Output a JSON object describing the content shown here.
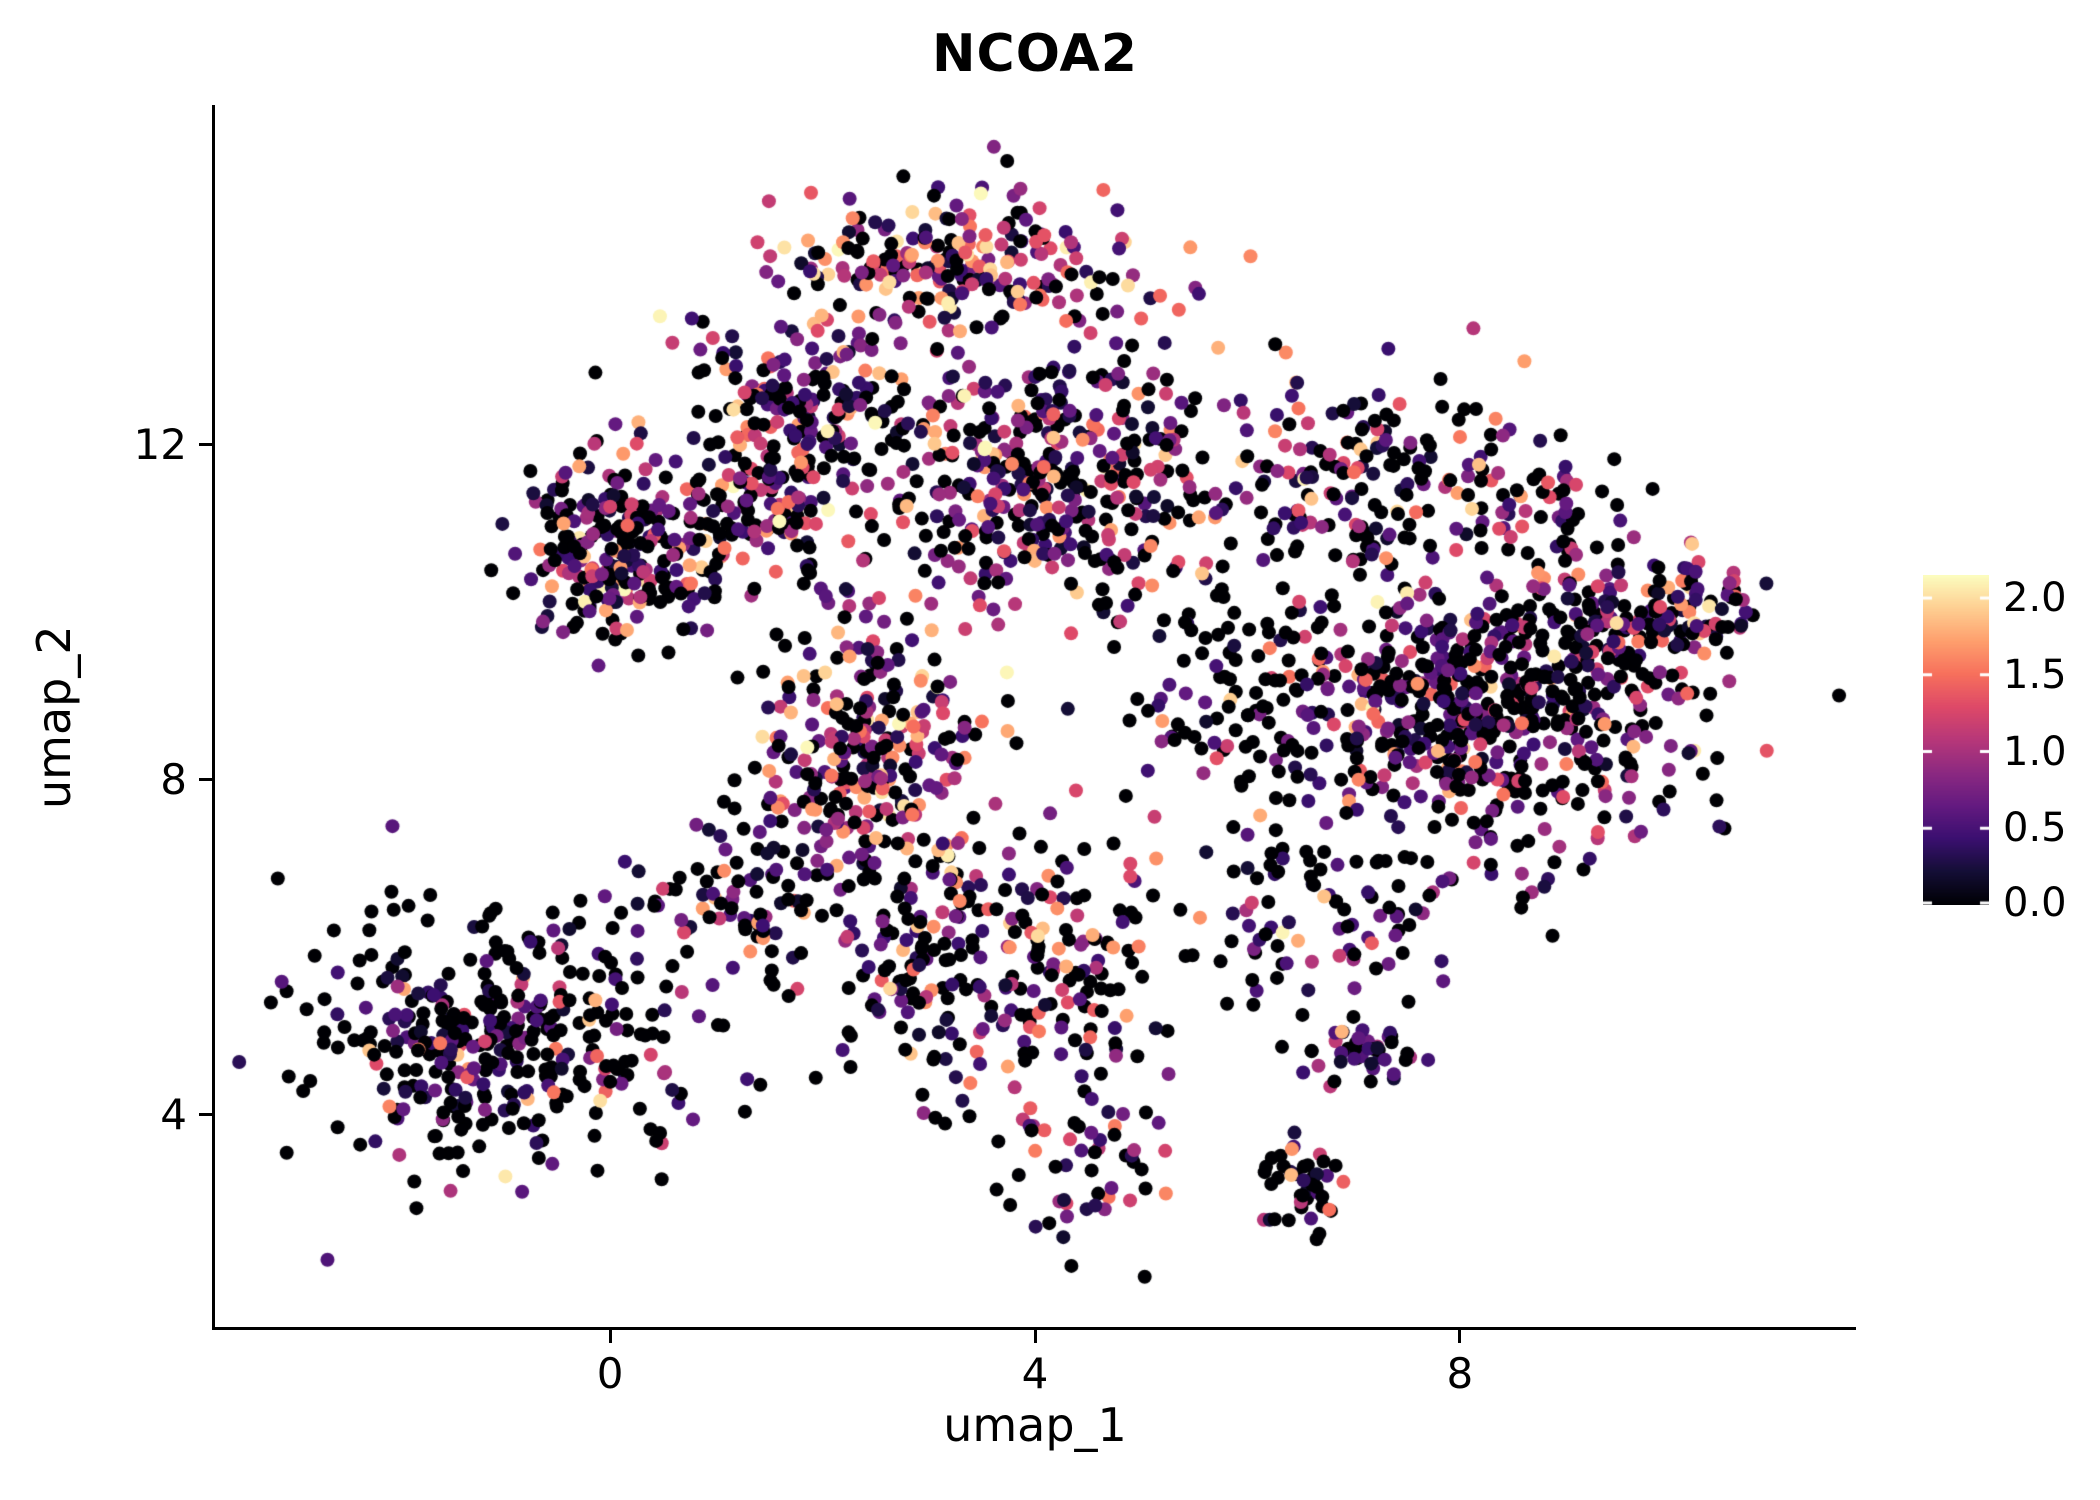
{
  "figure": {
    "background_color": "#ffffff",
    "text_color": "#000000",
    "axis_color": "#000000"
  },
  "chart_data": {
    "type": "scatter",
    "title": "NCOA2",
    "xlabel": "umap_1",
    "ylabel": "umap_2",
    "xlim": [
      -3.72,
      11.72
    ],
    "ylim": [
      1.43,
      16.06
    ],
    "xticks": [
      0,
      4,
      8
    ],
    "yticks": [
      4,
      8,
      12
    ],
    "grid": false,
    "legend_position": "right",
    "point_radius_px": 7,
    "n_points_total": 3540,
    "seed": 20240711,
    "colorbar": {
      "ticks": [
        2.0,
        1.5,
        1.0,
        0.5,
        0.0
      ],
      "ticklabels": [
        "2.0",
        "1.5",
        "1.0",
        "0.5",
        "0.0"
      ],
      "vmin": 0.0,
      "vmax": 2.15,
      "colormap_name": "magma",
      "colormap_stops": [
        "#000004",
        "#140e36",
        "#3b0f70",
        "#641a80",
        "#8c2981",
        "#b73779",
        "#de4968",
        "#f7705c",
        "#fe9f6d",
        "#fecf92",
        "#fcfdbf"
      ]
    },
    "value_bins": [
      [
        0,
        0
      ],
      [
        0.15,
        0.65
      ],
      [
        0.65,
        1.3
      ],
      [
        1.3,
        1.9
      ],
      [
        1.9,
        2.15
      ]
    ],
    "clusters": [
      {
        "name": "crown-top",
        "cx": 3.3,
        "cy": 14.15,
        "sx": 0.95,
        "sy": 0.4,
        "n": 230,
        "bin_weights": [
          0.2,
          0.18,
          0.24,
          0.28,
          0.1
        ]
      },
      {
        "name": "upper-left-blob",
        "cx": 0.1,
        "cy": 10.7,
        "sx": 0.45,
        "sy": 0.55,
        "n": 260,
        "bin_weights": [
          0.4,
          0.28,
          0.2,
          0.1,
          0.02
        ]
      },
      {
        "name": "upper-left-arm",
        "cx": 1.4,
        "cy": 11.3,
        "sx": 0.5,
        "sy": 0.4,
        "n": 120,
        "bin_weights": [
          0.38,
          0.27,
          0.2,
          0.12,
          0.03
        ]
      },
      {
        "name": "left-arc",
        "cx": 1.85,
        "cy": 12.55,
        "sx": 0.55,
        "sy": 0.5,
        "n": 170,
        "bin_weights": [
          0.35,
          0.25,
          0.22,
          0.15,
          0.03
        ]
      },
      {
        "name": "central-mass",
        "cx": 4.15,
        "cy": 11.55,
        "sx": 0.85,
        "sy": 0.85,
        "n": 420,
        "bin_weights": [
          0.38,
          0.24,
          0.22,
          0.13,
          0.03
        ]
      },
      {
        "name": "mid-left-column",
        "cx": 2.4,
        "cy": 8.2,
        "sx": 0.55,
        "sy": 0.9,
        "n": 300,
        "bin_weights": [
          0.36,
          0.24,
          0.22,
          0.15,
          0.03
        ]
      },
      {
        "name": "sparse-center",
        "cx": 6.0,
        "cy": 9.0,
        "sx": 0.6,
        "sy": 0.95,
        "n": 110,
        "bin_weights": [
          0.62,
          0.2,
          0.12,
          0.05,
          0.01
        ]
      },
      {
        "name": "right-mass",
        "cx": 8.3,
        "cy": 8.8,
        "sx": 0.95,
        "sy": 0.85,
        "n": 600,
        "bin_weights": [
          0.44,
          0.28,
          0.18,
          0.09,
          0.01
        ]
      },
      {
        "name": "right-upper-arm",
        "cx": 7.0,
        "cy": 11.6,
        "sx": 0.7,
        "sy": 0.6,
        "n": 170,
        "bin_weights": [
          0.42,
          0.26,
          0.18,
          0.11,
          0.03
        ]
      },
      {
        "name": "upper-right-edge",
        "cx": 8.8,
        "cy": 11.3,
        "sx": 0.4,
        "sy": 0.45,
        "n": 60,
        "bin_weights": [
          0.55,
          0.25,
          0.12,
          0.07,
          0.01
        ]
      },
      {
        "name": "right-bump",
        "cx": 9.35,
        "cy": 9.9,
        "sx": 0.45,
        "sy": 0.4,
        "n": 80,
        "bin_weights": [
          0.45,
          0.3,
          0.15,
          0.09,
          0.01
        ]
      },
      {
        "name": "right-islet",
        "cx": 10.25,
        "cy": 10.1,
        "sx": 0.3,
        "sy": 0.28,
        "n": 70,
        "bin_weights": [
          0.2,
          0.4,
          0.25,
          0.13,
          0.02
        ]
      },
      {
        "name": "lower-tail-left",
        "cx": 3.0,
        "cy": 5.7,
        "sx": 0.45,
        "sy": 0.8,
        "n": 130,
        "bin_weights": [
          0.45,
          0.25,
          0.17,
          0.11,
          0.02
        ]
      },
      {
        "name": "lower-tail-right",
        "cx": 4.3,
        "cy": 5.9,
        "sx": 0.5,
        "sy": 0.8,
        "n": 130,
        "bin_weights": [
          0.45,
          0.25,
          0.17,
          0.11,
          0.02
        ]
      },
      {
        "name": "bottom-middle",
        "cx": 4.4,
        "cy": 3.5,
        "sx": 0.45,
        "sy": 0.5,
        "n": 55,
        "bin_weights": [
          0.45,
          0.3,
          0.15,
          0.09,
          0.01
        ]
      },
      {
        "name": "bottom-dark-clump",
        "cx": 6.5,
        "cy": 3.15,
        "sx": 0.2,
        "sy": 0.3,
        "n": 45,
        "bin_weights": [
          0.65,
          0.25,
          0.06,
          0.04,
          0.0
        ]
      },
      {
        "name": "small-purple-clump",
        "cx": 7.05,
        "cy": 4.7,
        "sx": 0.24,
        "sy": 0.2,
        "n": 40,
        "bin_weights": [
          0.25,
          0.55,
          0.15,
          0.05,
          0.0
        ]
      },
      {
        "name": "left-bridge",
        "cx": 1.1,
        "cy": 6.6,
        "sx": 0.5,
        "sy": 0.55,
        "n": 80,
        "bin_weights": [
          0.5,
          0.28,
          0.14,
          0.07,
          0.01
        ]
      },
      {
        "name": "lower-right-scatter",
        "cx": 6.7,
        "cy": 6.2,
        "sx": 0.75,
        "sy": 0.55,
        "n": 90,
        "bin_weights": [
          0.5,
          0.28,
          0.14,
          0.07,
          0.01
        ]
      },
      {
        "name": "left-bottom-cluster",
        "cx": -1.1,
        "cy": 4.9,
        "sx": 0.9,
        "sy": 0.75,
        "n": 380,
        "bin_weights": [
          0.62,
          0.26,
          0.08,
          0.03,
          0.01
        ]
      }
    ]
  }
}
